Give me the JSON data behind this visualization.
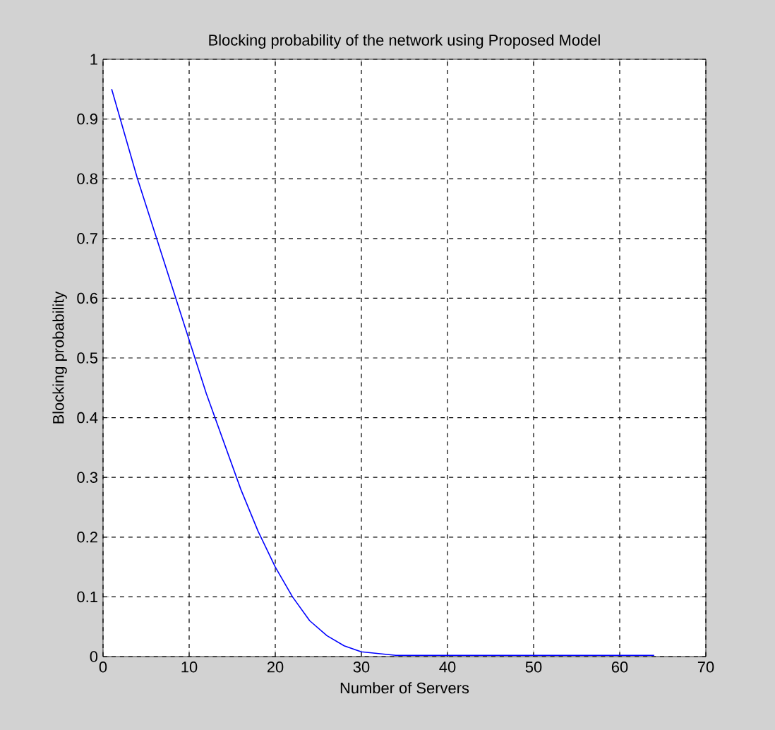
{
  "chart_data": {
    "type": "line",
    "title": "Blocking probability of the network using Proposed Model",
    "xlabel": "Number of Servers",
    "ylabel": "Blocking probability",
    "x": [
      1,
      4,
      6,
      8,
      10,
      12,
      14,
      16,
      18,
      20,
      22,
      24,
      26,
      28,
      30,
      32,
      34,
      40,
      50,
      64
    ],
    "series": [
      {
        "color": "#0000ff",
        "values": [
          0.95,
          0.8,
          0.71,
          0.62,
          0.53,
          0.44,
          0.36,
          0.28,
          0.21,
          0.15,
          0.1,
          0.06,
          0.035,
          0.018,
          0.008,
          0.005,
          0.002,
          0.002,
          0.002,
          0.002
        ]
      }
    ],
    "xlim": [
      0,
      70
    ],
    "ylim": [
      0,
      1
    ],
    "xticks": [
      0,
      10,
      20,
      30,
      40,
      50,
      60,
      70
    ],
    "yticks": [
      0,
      {
        "value": 0.1,
        "label": "0.1"
      },
      {
        "value": 0.2,
        "label": "0.2"
      },
      {
        "value": 0.3,
        "label": "0.3"
      },
      {
        "value": 0.4,
        "label": "0.4"
      },
      {
        "value": 0.5,
        "label": "0.5"
      },
      {
        "value": 0.6,
        "label": "0.6"
      },
      {
        "value": 0.7,
        "label": "0.7"
      },
      {
        "value": 0.8,
        "label": "0.8"
      },
      {
        "value": 0.9,
        "label": "0.9"
      },
      1
    ],
    "grid": true,
    "line_style": "solid",
    "marker": "none"
  }
}
